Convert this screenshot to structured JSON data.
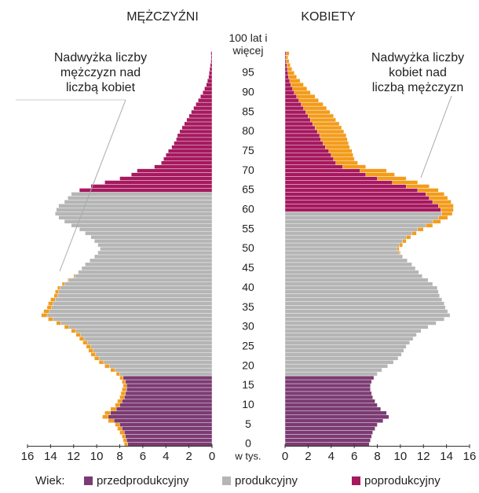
{
  "chart_data": {
    "type": "pyramid",
    "series": [
      {
        "name": "MĘŻCZYŹNI",
        "side": "left",
        "group_starts": [
          0,
          18,
          65
        ],
        "values": [
          7.6,
          7.7,
          7.8,
          8.0,
          8.2,
          8.4,
          9.0,
          9.5,
          9.3,
          8.8,
          8.4,
          8.2,
          8.0,
          7.9,
          7.8,
          7.7,
          7.8,
          8.0,
          8.3,
          8.8,
          9.3,
          9.8,
          10.2,
          10.5,
          10.7,
          10.9,
          11.2,
          11.5,
          11.8,
          12.2,
          12.8,
          13.5,
          14.2,
          14.8,
          14.6,
          14.3,
          14.2,
          14.0,
          13.7,
          13.6,
          13.4,
          13.0,
          12.5,
          12.0,
          11.6,
          11.3,
          11.0,
          10.6,
          10.2,
          9.9,
          9.7,
          9.9,
          10.2,
          10.5,
          11.0,
          11.5,
          12.2,
          12.8,
          13.3,
          13.6,
          13.5,
          13.3,
          12.8,
          12.5,
          12.2,
          11.5,
          10.5,
          9.3,
          8.0,
          7.0,
          6.5,
          5.0,
          4.4,
          4.2,
          4.0,
          3.8,
          3.5,
          3.3,
          3.1,
          3.0,
          2.8,
          2.6,
          2.4,
          2.2,
          2.0,
          1.8,
          1.6,
          1.4,
          1.2,
          1.0,
          0.8,
          0.65,
          0.5,
          0.4,
          0.3,
          0.25,
          0.2,
          0.15,
          0.1,
          0.08,
          0.1
        ]
      },
      {
        "name": "KOBIETY",
        "side": "right",
        "group_starts": [
          0,
          18,
          60
        ],
        "values": [
          7.3,
          7.4,
          7.5,
          7.6,
          7.8,
          8.0,
          8.5,
          9.0,
          8.8,
          8.3,
          8.0,
          7.8,
          7.6,
          7.5,
          7.4,
          7.4,
          7.5,
          7.7,
          8.0,
          8.4,
          8.9,
          9.4,
          9.8,
          10.1,
          10.3,
          10.5,
          10.8,
          11.1,
          11.4,
          11.8,
          12.4,
          13.1,
          13.8,
          14.3,
          14.1,
          13.9,
          13.8,
          13.6,
          13.4,
          13.3,
          13.2,
          12.8,
          12.4,
          11.9,
          11.6,
          11.3,
          11.0,
          10.6,
          10.2,
          10.0,
          9.9,
          10.2,
          10.5,
          10.9,
          11.4,
          12.0,
          12.8,
          13.5,
          14.1,
          14.5,
          14.6,
          14.6,
          14.4,
          14.1,
          13.8,
          13.3,
          12.5,
          11.5,
          10.5,
          9.5,
          8.8,
          7.0,
          6.3,
          6.0,
          5.9,
          5.8,
          5.6,
          5.5,
          5.4,
          5.3,
          5.1,
          4.9,
          4.7,
          4.4,
          4.2,
          3.9,
          3.6,
          3.3,
          2.9,
          2.6,
          2.2,
          1.9,
          1.6,
          1.3,
          1.0,
          0.8,
          0.6,
          0.45,
          0.35,
          0.25,
          0.35
        ]
      }
    ],
    "categories": [
      "0",
      null,
      null,
      null,
      null,
      "5",
      null,
      null,
      null,
      null,
      "10",
      null,
      null,
      null,
      null,
      "15",
      null,
      null,
      null,
      null,
      "20",
      null,
      null,
      null,
      null,
      "25",
      null,
      null,
      null,
      null,
      "30",
      null,
      null,
      null,
      null,
      "35",
      null,
      null,
      null,
      null,
      "40",
      null,
      null,
      null,
      null,
      "45",
      null,
      null,
      null,
      null,
      "50",
      null,
      null,
      null,
      null,
      "55",
      null,
      null,
      null,
      null,
      "60",
      null,
      null,
      null,
      null,
      "65",
      null,
      null,
      null,
      null,
      "70",
      null,
      null,
      null,
      null,
      "75",
      null,
      null,
      null,
      null,
      "80",
      null,
      null,
      null,
      null,
      "85",
      null,
      null,
      null,
      null,
      "90",
      null,
      null,
      null,
      null,
      "95",
      null,
      null,
      null,
      null,
      "100 lat i więcej"
    ],
    "groups": [
      {
        "name": "przedprodukcyjny",
        "color": "#7b3b73"
      },
      {
        "name": "produkcyjny",
        "color": "#b5b5b5"
      },
      {
        "name": "poprodukcyjny",
        "color": "#a6195f"
      }
    ],
    "surplus_color": "#f39c1b",
    "legend_title": "Wiek:",
    "unit_label": "w tys.",
    "xlim": [
      0,
      16
    ],
    "xticks": [
      0,
      2,
      4,
      6,
      8,
      10,
      12,
      14,
      16
    ],
    "annotations": [
      {
        "lines": [
          "Nadwyżka liczby",
          "mężczyzn nad",
          "liczbą kobiet"
        ]
      },
      {
        "lines": [
          "Nadwyżka liczby",
          "kobiet nad",
          "liczbą mężczyzn"
        ]
      }
    ]
  }
}
